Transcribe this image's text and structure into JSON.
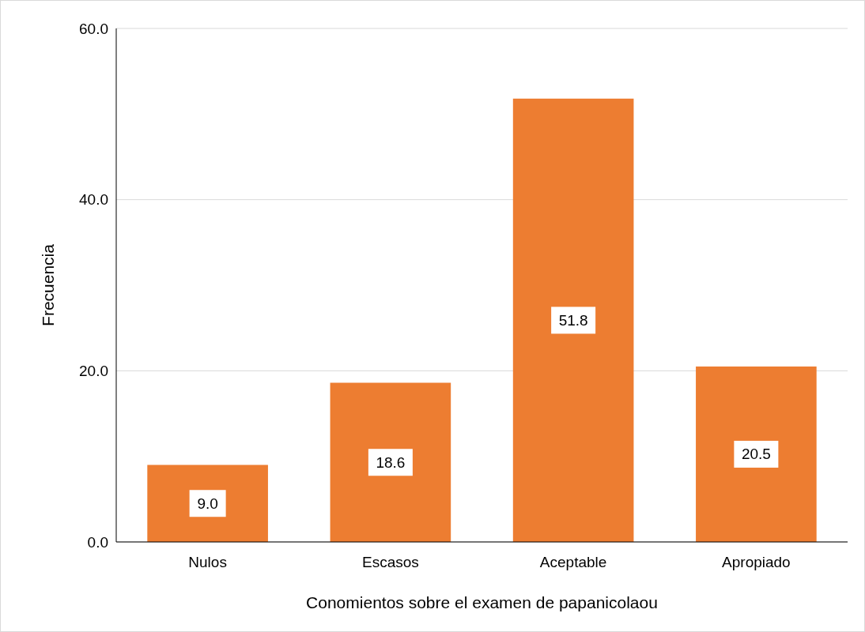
{
  "chart_data": {
    "type": "bar",
    "xlabel": "Conomientos sobre el examen de papanicolaou",
    "ylabel": "Frecuencia",
    "categories": [
      "Nulos",
      "Escasos",
      "Aceptable",
      "Apropiado"
    ],
    "values": [
      9.0,
      18.6,
      51.8,
      20.5
    ],
    "color": "#ed7d31",
    "value_labels": [
      "9.0",
      "18.6",
      "51.8",
      "20.5"
    ],
    "ylim": [
      0,
      60
    ],
    "yticks": [
      {
        "value": 0,
        "label": "0.0"
      },
      {
        "value": 20,
        "label": "20.0"
      },
      {
        "value": 40,
        "label": "40.0"
      },
      {
        "value": 60,
        "label": "60.0"
      }
    ],
    "grid": "y"
  }
}
